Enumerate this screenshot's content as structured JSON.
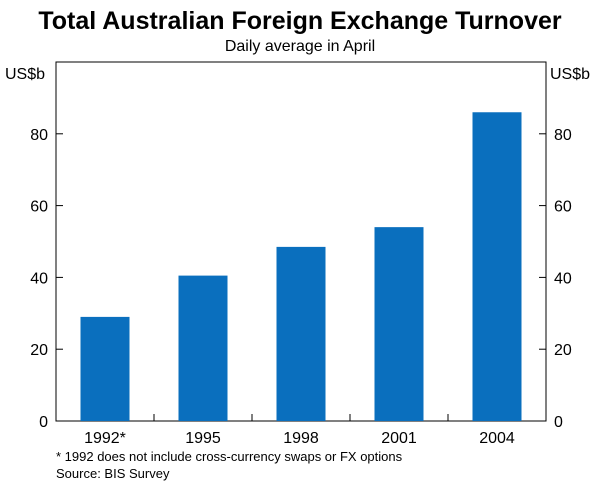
{
  "chart_data": {
    "type": "bar",
    "title": "Total Australian Foreign Exchange Turnover",
    "subtitle": "Daily average in April",
    "ylabel_left": "US$b",
    "ylabel_right": "US$b",
    "categories": [
      "1992*",
      "1995",
      "1998",
      "2001",
      "2004"
    ],
    "values": [
      29,
      40.5,
      48.5,
      54,
      86
    ],
    "ylim": [
      0,
      100
    ],
    "yticks": [
      0,
      20,
      40,
      60,
      80
    ],
    "grid": false,
    "colors": {
      "bar": "#0a6fbe",
      "axis": "#000000"
    }
  },
  "footnotes": {
    "note": "*  1992 does not include cross-currency swaps or FX options",
    "source": "Source: BIS Survey"
  }
}
